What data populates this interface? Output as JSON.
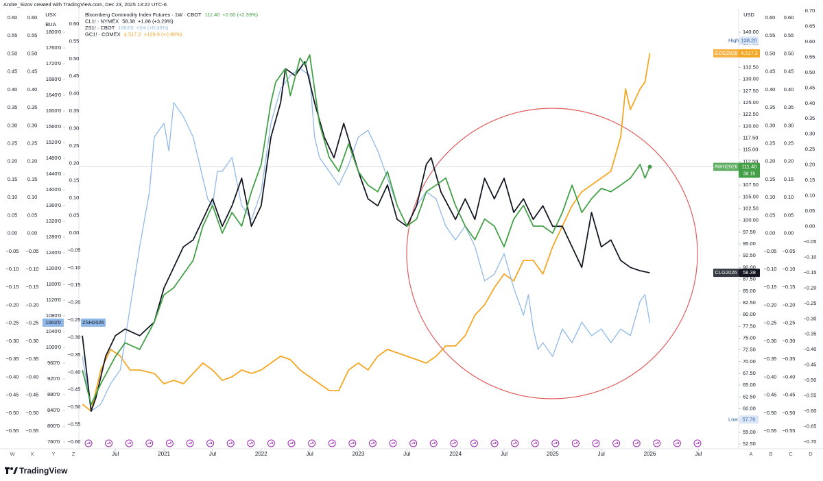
{
  "header": "Andre_Sizov created with TradingView.com, Dec 23, 2025 13:22 UTC-6",
  "footer": "TradingView",
  "chart_data": {
    "type": "line",
    "xlim": [
      2020.124,
      2026.9
    ],
    "xticks": [
      {
        "value": 2020.5,
        "label": "Jul"
      },
      {
        "value": 2021,
        "label": "2021"
      },
      {
        "value": 2021.5,
        "label": "Jul"
      },
      {
        "value": 2022,
        "label": "2022"
      },
      {
        "value": 2022.5,
        "label": "Jul"
      },
      {
        "value": 2023,
        "label": "2023"
      },
      {
        "value": 2023.5,
        "label": "Jul"
      },
      {
        "value": 2024,
        "label": "2024"
      },
      {
        "value": 2024.5,
        "label": "Jul"
      },
      {
        "value": 2025,
        "label": "2025"
      },
      {
        "value": 2025.5,
        "label": "Jul"
      },
      {
        "value": 2026,
        "label": "2026"
      },
      {
        "value": 2026.5,
        "label": "Jul"
      }
    ],
    "usd_axis": {
      "title": "USD",
      "ylim": [
        52.5,
        140
      ],
      "yticks": [
        {
          "value": 140,
          "label": "140.00"
        },
        {
          "value": 137.5,
          "label": "137.50"
        },
        {
          "value": 135,
          "label": "135.00"
        },
        {
          "value": 132.5,
          "label": "132.50"
        },
        {
          "value": 130,
          "label": "130.00"
        },
        {
          "value": 127.5,
          "label": "127.50"
        },
        {
          "value": 125,
          "label": "125.00"
        },
        {
          "value": 122.5,
          "label": "122.50"
        },
        {
          "value": 120,
          "label": "120.00"
        },
        {
          "value": 117.5,
          "label": "117.50"
        },
        {
          "value": 115,
          "label": "115.00"
        },
        {
          "value": 112.5,
          "label": "112.50"
        },
        {
          "value": 110,
          "label": "110.00"
        },
        {
          "value": 107.5,
          "label": "107.50"
        },
        {
          "value": 105,
          "label": "105.00"
        },
        {
          "value": 102.5,
          "label": "102.50"
        },
        {
          "value": 100,
          "label": "100.00"
        },
        {
          "value": 97.5,
          "label": "97.50"
        },
        {
          "value": 95,
          "label": "95.00"
        },
        {
          "value": 92.5,
          "label": "92.50"
        },
        {
          "value": 90,
          "label": "90.00"
        },
        {
          "value": 87.5,
          "label": "87.50"
        },
        {
          "value": 85,
          "label": "85.00"
        },
        {
          "value": 82.5,
          "label": "82.50"
        },
        {
          "value": 80,
          "label": "80.00"
        },
        {
          "value": 77.5,
          "label": "77.50"
        },
        {
          "value": 75,
          "label": "75.00"
        },
        {
          "value": 72.5,
          "label": "72.50"
        },
        {
          "value": 70,
          "label": "70.00"
        },
        {
          "value": 67.5,
          "label": "67.50"
        },
        {
          "value": 65,
          "label": "65.00"
        },
        {
          "value": 62.5,
          "label": "62.50"
        },
        {
          "value": 60,
          "label": "60.00"
        },
        {
          "value": 57.5,
          "label": "57.50"
        },
        {
          "value": 55,
          "label": "55.00"
        },
        {
          "value": 52.5,
          "label": "52.50"
        }
      ],
      "high": {
        "label": "High",
        "value": 138.2,
        "value_label": "138.20"
      },
      "low": {
        "label": "Low",
        "value": 57.7,
        "value_label": "57.70"
      }
    },
    "usx_axis": {
      "title": "USX",
      "subtitle": "BUA",
      "ylim": [
        755,
        1800
      ],
      "yticks": [
        {
          "value": 1800,
          "label": "1800'0"
        },
        {
          "value": 1760,
          "label": "1760'0"
        },
        {
          "value": 1720,
          "label": "1720'0"
        },
        {
          "value": 1680,
          "label": "1680'0"
        },
        {
          "value": 1640,
          "label": "1640'0"
        },
        {
          "value": 1600,
          "label": "1600'0"
        },
        {
          "value": 1560,
          "label": "1560'0"
        },
        {
          "value": 1520,
          "label": "1520'0"
        },
        {
          "value": 1480,
          "label": "1480'0"
        },
        {
          "value": 1440,
          "label": "1440'0"
        },
        {
          "value": 1400,
          "label": "1400'0"
        },
        {
          "value": 1360,
          "label": "1360'0"
        },
        {
          "value": 1320,
          "label": "1320'0"
        },
        {
          "value": 1280,
          "label": "1280'0"
        },
        {
          "value": 1240,
          "label": "1240'0"
        },
        {
          "value": 1200,
          "label": "1200'0"
        },
        {
          "value": 1160,
          "label": "1160'0"
        },
        {
          "value": 1120,
          "label": "1120'0"
        },
        {
          "value": 1080,
          "label": "1080'0"
        },
        {
          "value": 1040,
          "label": "1040'0"
        },
        {
          "value": 1000,
          "label": "1000'0"
        },
        {
          "value": 960,
          "label": "960'0"
        },
        {
          "value": 920,
          "label": "920'0"
        },
        {
          "value": 880,
          "label": "880'0"
        },
        {
          "value": 840,
          "label": "840'0"
        },
        {
          "value": 800,
          "label": "800'0"
        },
        {
          "value": 760,
          "label": "760'0"
        }
      ]
    },
    "side_axes": [
      {
        "labels": [
          "0.60",
          "0.55",
          "0.50",
          "0.45",
          "0.40",
          "0.35",
          "0.30",
          "0.25",
          "0.20",
          "0.15",
          "0.10",
          "0.05",
          "0.00",
          "−0.05",
          "−0.10",
          "−0.15",
          "−0.20",
          "−0.25",
          "−0.30",
          "−0.35",
          "−0.40",
          "−0.45",
          "−0.50",
          "−0.55"
        ]
      },
      {
        "labels": [
          "0.60",
          "0.55",
          "0.50",
          "0.45",
          "0.40",
          "0.35",
          "0.30",
          "0.25",
          "0.20",
          "0.15",
          "0.10",
          "0.05",
          "0.00",
          "−0.05",
          "−0.10",
          "−0.15",
          "−0.20",
          "−0.25",
          "−0.30",
          "−0.35",
          "−0.40",
          "−0.45",
          "−0.50",
          "−0.55"
        ]
      },
      {
        "labels": [
          "0.60",
          "0.55",
          "0.50",
          "0.45",
          "0.40",
          "0.35",
          "0.30",
          "0.25",
          "0.20",
          "0.15",
          "0.10",
          "0.05",
          "0.00",
          "−0.05",
          "−0.10",
          "−0.15",
          "−0.20",
          "−0.25",
          "−0.30",
          "−0.35",
          "−0.40",
          "−0.45",
          "−0.50",
          "−0.55",
          "−0.60"
        ]
      },
      {
        "labels": [
          "0.60",
          "0.55",
          "0.50",
          "0.45",
          "0.40",
          "0.35",
          "0.30",
          "0.25",
          "0.20",
          "0.15",
          "0.10",
          "0.05",
          "0.00",
          "−0.05",
          "−0.10",
          "−0.15",
          "−0.20",
          "−0.25",
          "−0.30",
          "−0.35",
          "−0.40",
          "−0.45",
          "−0.50",
          "−0.55"
        ]
      },
      {
        "labels": [
          "0.60",
          "0.55",
          "0.50",
          "0.45",
          "0.40",
          "0.35",
          "0.30",
          "0.25",
          "0.20",
          "0.15",
          "0.10",
          "0.05",
          "0.00",
          "−0.05",
          "−0.10",
          "−0.15",
          "−0.20",
          "−0.25",
          "−0.30",
          "−0.35",
          "−0.40",
          "−0.45",
          "−0.50",
          "−0.55"
        ]
      },
      {
        "labels": [
          "0.70",
          "0.65",
          "0.60",
          "0.55",
          "0.50",
          "0.45",
          "0.40",
          "0.35",
          "0.30",
          "0.25",
          "0.20",
          "0.15",
          "0.10",
          "0.05",
          "0.00",
          "−0.05",
          "−0.10",
          "−0.15",
          "−0.20",
          "−0.25",
          "−0.30",
          "−0.35",
          "−0.40",
          "−0.45",
          "−0.50",
          "−0.55",
          "−0.60",
          "−0.65",
          "−0.70"
        ]
      }
    ],
    "pane_letters_left": [
      "W",
      "X",
      "Y",
      "Z"
    ],
    "pane_letters_right": [
      "A",
      "B",
      "C",
      "D"
    ],
    "series": [
      {
        "name": "AWH2026",
        "legend": "Bloomberg Commodity Index Futures · 1W · CBOT",
        "last_label": "111.40",
        "change": "+2.60 (+2.39%)",
        "countdown": "3d 1h",
        "color": "#43a047",
        "axis": "usd",
        "x": [
          2020.16,
          2020.25,
          2020.35,
          2020.5,
          2020.6,
          2020.75,
          2020.9,
          2021.0,
          2021.1,
          2021.2,
          2021.3,
          2021.4,
          2021.5,
          2021.6,
          2021.7,
          2021.8,
          2021.9,
          2022.0,
          2022.1,
          2022.15,
          2022.25,
          2022.3,
          2022.4,
          2022.45,
          2022.5,
          2022.55,
          2022.6,
          2022.7,
          2022.8,
          2022.9,
          2023.0,
          2023.1,
          2023.2,
          2023.3,
          2023.4,
          2023.5,
          2023.6,
          2023.7,
          2023.8,
          2023.9,
          2024.0,
          2024.1,
          2024.2,
          2024.3,
          2024.4,
          2024.5,
          2024.6,
          2024.7,
          2024.8,
          2024.9,
          2025.0,
          2025.1,
          2025.2,
          2025.3,
          2025.4,
          2025.5,
          2025.6,
          2025.7,
          2025.8,
          2025.9,
          2025.95,
          2026.0
        ],
        "values": [
          68.2,
          60.9,
          65.3,
          71.1,
          74.0,
          72.6,
          78.4,
          84.2,
          85.7,
          88.6,
          91.5,
          98.8,
          103.2,
          97.3,
          101.7,
          98.8,
          106.1,
          111.9,
          125.0,
          129.4,
          132.3,
          126.5,
          134.5,
          133.0,
          135.2,
          127.9,
          120.6,
          113.4,
          110.4,
          116.3,
          110.4,
          107.5,
          106.1,
          110.4,
          103.2,
          98.8,
          100.3,
          106.1,
          107.5,
          109.0,
          103.2,
          98.8,
          95.9,
          100.3,
          98.8,
          94.4,
          100.3,
          103.2,
          98.8,
          98.8,
          97.3,
          101.7,
          107.5,
          101.7,
          104.6,
          106.8,
          106.1,
          107.5,
          109.0,
          111.9,
          109.0,
          111.4
        ]
      },
      {
        "name": "CLG2026",
        "legend": "CL1! · NYMEX",
        "last_label": "58.38",
        "change": "+1.86 (+3.29%)",
        "color": "#131722",
        "ylim": [
          6.7,
          131
        ],
        "x": [
          2020.16,
          2020.25,
          2020.3,
          2020.4,
          2020.5,
          2020.6,
          2020.75,
          2020.9,
          2021.0,
          2021.1,
          2021.2,
          2021.3,
          2021.4,
          2021.5,
          2021.6,
          2021.7,
          2021.8,
          2021.9,
          2022.0,
          2022.1,
          2022.2,
          2022.25,
          2022.35,
          2022.45,
          2022.55,
          2022.65,
          2022.75,
          2022.85,
          2023.0,
          2023.1,
          2023.2,
          2023.3,
          2023.4,
          2023.5,
          2023.6,
          2023.7,
          2023.75,
          2023.85,
          2024.0,
          2024.1,
          2024.2,
          2024.3,
          2024.4,
          2024.5,
          2024.6,
          2024.7,
          2024.8,
          2024.9,
          2025.0,
          2025.1,
          2025.2,
          2025.3,
          2025.4,
          2025.5,
          2025.6,
          2025.7,
          2025.8,
          2025.9,
          2026.0
        ],
        "values": [
          39.4,
          16.6,
          20.7,
          33.2,
          39.4,
          41.4,
          39.4,
          43.5,
          53.8,
          60.0,
          66.2,
          68.3,
          74.5,
          80.7,
          72.4,
          78.6,
          86.9,
          72.4,
          78.6,
          99.3,
          109.7,
          120.0,
          117.9,
          122.1,
          109.7,
          99.3,
          93.1,
          103.5,
          89.0,
          80.7,
          78.6,
          84.9,
          74.5,
          72.4,
          78.6,
          91.1,
          93.1,
          82.8,
          74.5,
          80.7,
          74.5,
          86.9,
          80.7,
          86.9,
          76.6,
          80.7,
          74.5,
          78.6,
          72.4,
          72.4,
          66.2,
          60.0,
          76.6,
          66.2,
          68.3,
          62.1,
          60.0,
          59.0,
          58.38
        ]
      },
      {
        "name": "ZSH2026",
        "legend": "ZS1! · CBOT",
        "last_label": "1063'0",
        "change": "+3'4 (+0.33%)",
        "color": "#8fb8e8",
        "axis": "usx",
        "x": [
          2020.16,
          2020.25,
          2020.35,
          2020.45,
          2020.55,
          2020.65,
          2020.75,
          2020.85,
          2020.9,
          2021.0,
          2021.05,
          2021.1,
          2021.2,
          2021.3,
          2021.35,
          2021.45,
          2021.5,
          2021.55,
          2021.6,
          2021.7,
          2021.8,
          2021.9,
          2022.0,
          2022.1,
          2022.2,
          2022.3,
          2022.4,
          2022.5,
          2022.55,
          2022.6,
          2022.7,
          2022.8,
          2022.9,
          2023.0,
          2023.1,
          2023.2,
          2023.3,
          2023.4,
          2023.5,
          2023.6,
          2023.7,
          2023.8,
          2023.9,
          2024.0,
          2024.1,
          2024.2,
          2024.3,
          2024.4,
          2024.5,
          2024.6,
          2024.7,
          2024.75,
          2024.8,
          2024.85,
          2024.9,
          2025.0,
          2025.1,
          2025.2,
          2025.3,
          2025.4,
          2025.5,
          2025.6,
          2025.7,
          2025.8,
          2025.9,
          2025.95,
          2026.0
        ],
        "values": [
          977,
          838,
          856,
          908,
          943,
          1099,
          1256,
          1395,
          1534,
          1569,
          1499,
          1621,
          1586,
          1534,
          1482,
          1377,
          1360,
          1447,
          1447,
          1482,
          1360,
          1325,
          1395,
          1569,
          1656,
          1690,
          1708,
          1690,
          1534,
          1482,
          1447,
          1412,
          1464,
          1534,
          1551,
          1499,
          1430,
          1360,
          1308,
          1360,
          1395,
          1377,
          1308,
          1273,
          1308,
          1256,
          1169,
          1186,
          1238,
          1151,
          1082,
          1134,
          1047,
          995,
          1012,
          977,
          1047,
          1012,
          1064,
          1030,
          1047,
          1012,
          1047,
          1030,
          1117,
          1134,
          1063
        ]
      },
      {
        "name": "GCG2026",
        "legend": "GC1! · COMEX",
        "last_label": "4,517.2",
        "change": "+129.9 (+2.96%)",
        "color": "#f5a623",
        "ylim": [
          1441,
          4684
        ],
        "x": [
          2020.16,
          2020.25,
          2020.35,
          2020.45,
          2020.55,
          2020.65,
          2020.75,
          2020.9,
          2021.0,
          2021.1,
          2021.2,
          2021.3,
          2021.4,
          2021.5,
          2021.6,
          2021.7,
          2021.8,
          2021.9,
          2022.0,
          2022.1,
          2022.2,
          2022.3,
          2022.4,
          2022.5,
          2022.6,
          2022.7,
          2022.8,
          2022.9,
          2023.0,
          2023.1,
          2023.2,
          2023.3,
          2023.4,
          2023.5,
          2023.6,
          2023.7,
          2023.8,
          2023.9,
          2024.0,
          2024.1,
          2024.2,
          2024.3,
          2024.4,
          2024.5,
          2024.6,
          2024.7,
          2024.8,
          2024.9,
          2025.0,
          2025.1,
          2025.2,
          2025.3,
          2025.4,
          2025.5,
          2025.6,
          2025.7,
          2025.75,
          2025.8,
          2025.9,
          2025.95,
          2026.0
        ],
        "values": [
          1754,
          1700,
          2024,
          2186,
          2132,
          2024,
          2024,
          1997,
          1916,
          1943,
          1916,
          1997,
          2078,
          2024,
          1943,
          1970,
          2024,
          1997,
          2024,
          2078,
          2132,
          2105,
          2024,
          1970,
          1916,
          1862,
          1862,
          2024,
          2078,
          2024,
          2132,
          2186,
          2159,
          2132,
          2105,
          2078,
          2132,
          2213,
          2213,
          2294,
          2456,
          2537,
          2672,
          2780,
          2725,
          2887,
          2887,
          2780,
          2995,
          3157,
          3319,
          3427,
          3481,
          3535,
          3589,
          3859,
          4237,
          4075,
          4237,
          4291,
          4517.2
        ]
      }
    ]
  }
}
